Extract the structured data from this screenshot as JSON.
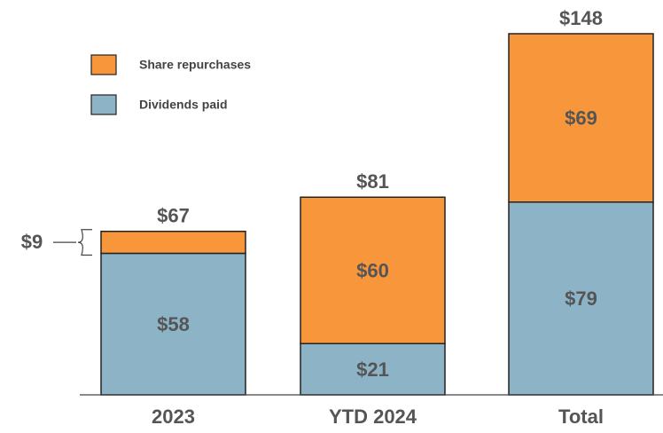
{
  "chart_data": {
    "type": "stacked_bar",
    "categories": [
      "2023",
      "YTD 2024",
      "Total"
    ],
    "series": [
      {
        "name": "Share repurchases",
        "color": "#f7963a",
        "values": [
          9,
          60,
          69
        ],
        "value_labels": [
          "$9",
          "$60",
          "$69"
        ]
      },
      {
        "name": "Dividends paid",
        "color": "#8db4c6",
        "values": [
          58,
          21,
          79
        ],
        "value_labels": [
          "$58",
          "$21",
          "$79"
        ]
      }
    ],
    "totals": {
      "values": [
        67,
        81,
        148
      ],
      "value_labels": [
        "$67",
        "$81",
        "$148"
      ]
    }
  }
}
